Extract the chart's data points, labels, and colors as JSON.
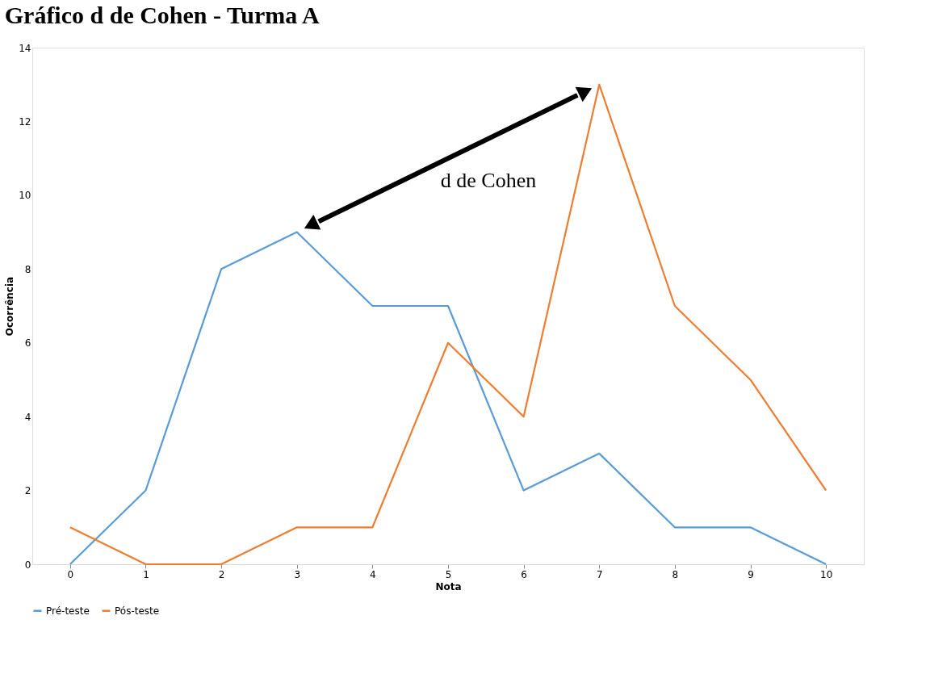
{
  "chart_data": {
    "type": "line",
    "title": "Gráfico d de Cohen - Turma A",
    "xlabel": "Nota",
    "ylabel": "Ocorrência",
    "categories": [
      "0",
      "1",
      "2",
      "3",
      "4",
      "5",
      "6",
      "7",
      "8",
      "9",
      "10"
    ],
    "series": [
      {
        "name": "Pré-teste",
        "color": "#5b9bd5",
        "values": [
          0,
          2,
          8,
          9,
          7,
          7,
          2,
          3,
          1,
          1,
          0
        ]
      },
      {
        "name": "Pós-teste",
        "color": "#ed7d31",
        "values": [
          1,
          0,
          0,
          1,
          1,
          6,
          4,
          13,
          7,
          5,
          2
        ]
      }
    ],
    "ylim": [
      0,
      14
    ],
    "yticks": [
      0,
      2,
      4,
      6,
      8,
      10,
      12,
      14
    ],
    "grid": false,
    "legend": "bottom",
    "marker": "none",
    "line_style": "solid",
    "annotations": [
      "d de Cohen"
    ]
  }
}
